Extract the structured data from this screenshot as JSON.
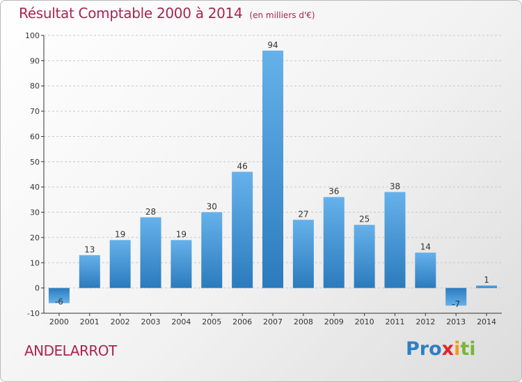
{
  "header": {
    "title": "Résultat Comptable 2000 à 2014",
    "subtitle": "(en milliers d'€)"
  },
  "footer": {
    "place_name": "ANDELARROT",
    "logo_letters": [
      "Pro",
      "x",
      "i",
      "ti"
    ]
  },
  "colors": {
    "title": "#a8254f",
    "bar_light": "#66b1ea",
    "bar_dark": "#2b7bbd",
    "axis": "#333333",
    "grid": "#c8c8c8"
  },
  "chart_data": {
    "type": "bar",
    "categories": [
      "2000",
      "2001",
      "2002",
      "2003",
      "2004",
      "2005",
      "2006",
      "2007",
      "2008",
      "2009",
      "2010",
      "2011",
      "2012",
      "2013",
      "2014"
    ],
    "values": [
      -6,
      13,
      19,
      28,
      19,
      30,
      46,
      94,
      27,
      36,
      25,
      38,
      14,
      -7,
      1
    ],
    "title": "Résultat Comptable 2000 à 2014",
    "ylabel": "",
    "xlabel": "",
    "ylim": [
      -10,
      100
    ],
    "yticks": [
      -10,
      0,
      10,
      20,
      30,
      40,
      50,
      60,
      70,
      80,
      90,
      100
    ],
    "grid": true,
    "grid_style": "dashed-horizontal"
  }
}
